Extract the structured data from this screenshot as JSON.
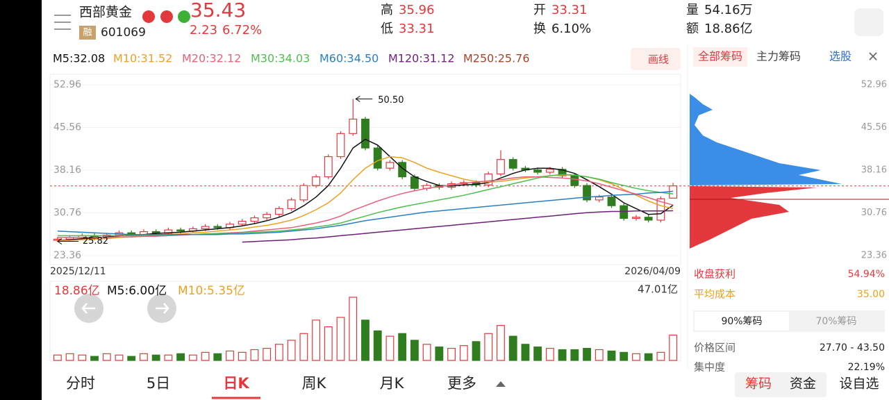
{
  "header": {
    "name": "西部黄金",
    "price": "35.43",
    "change": "2.23",
    "pct": "6.72%",
    "badge": "融",
    "code": "601069",
    "stats": [
      [
        "高",
        "35.96"
      ],
      [
        "低",
        "33.31"
      ],
      [
        "开",
        "33.31"
      ],
      [
        "换",
        "6.10%"
      ],
      [
        "量",
        "54.16万"
      ],
      [
        "额",
        "18.86亿"
      ]
    ],
    "draw": "画线"
  },
  "chart_data": {
    "type": "candlestick",
    "x_start": "2025/12/11",
    "x_end": "2026/04/09",
    "up_color": "#e4393c",
    "down_color": "#2f7d1f",
    "grid": true,
    "ylim": [
      23.36,
      52.96
    ],
    "yticks": [
      52.96,
      45.56,
      38.16,
      30.76,
      {
        "value": 23.36,
        "label": "23.36"
      }
    ],
    "open": [
      26.0,
      26.2,
      26.5,
      26.8,
      26.4,
      26.9,
      27.3,
      27.0,
      27.5,
      27.2,
      27.8,
      27.6,
      28.0,
      28.4,
      28.2,
      28.8,
      29.3,
      29.9,
      30.5,
      31.5,
      33.0,
      35.5,
      37.0,
      40.5,
      44.5,
      47.0,
      42.0,
      38.5,
      39.5,
      37.0,
      35.0,
      35.5,
      35.2,
      35.8,
      36.0,
      35.6,
      37.5,
      40.0,
      38.5,
      38.2,
      37.8,
      38.3,
      37.2,
      35.5,
      33.0,
      33.5,
      32.0,
      29.8,
      30.0,
      29.5,
      33.31
    ],
    "high": [
      26.6,
      26.9,
      27.2,
      27.2,
      27.3,
      27.7,
      27.7,
      27.9,
      27.9,
      28.2,
      28.2,
      28.4,
      28.8,
      28.8,
      29.2,
      29.7,
      30.3,
      30.9,
      31.9,
      33.4,
      35.9,
      37.4,
      40.9,
      44.9,
      50.5,
      47.4,
      42.4,
      39.9,
      39.9,
      37.4,
      35.9,
      35.9,
      36.2,
      36.4,
      36.4,
      37.9,
      41.6,
      40.4,
      38.9,
      38.6,
      38.7,
      38.7,
      37.6,
      35.9,
      33.9,
      33.9,
      32.4,
      30.4,
      30.4,
      33.6,
      35.96
    ],
    "low": [
      25.82,
      25.8,
      26.1,
      26.0,
      26.0,
      26.5,
      26.6,
      26.6,
      26.8,
      26.8,
      27.2,
      27.2,
      27.6,
      27.8,
      27.8,
      28.4,
      28.9,
      29.5,
      30.1,
      31.1,
      32.6,
      35.1,
      36.6,
      40.1,
      44.1,
      41.6,
      38.1,
      38.1,
      36.6,
      34.6,
      34.6,
      34.8,
      34.8,
      35.4,
      35.2,
      35.2,
      37.1,
      38.1,
      37.8,
      37.4,
      37.4,
      36.8,
      35.1,
      32.6,
      32.6,
      31.6,
      29.4,
      29.4,
      29.1,
      29.1,
      33.31
    ],
    "close": [
      26.2,
      26.5,
      26.8,
      26.4,
      26.9,
      27.3,
      27.0,
      27.5,
      27.2,
      27.8,
      27.6,
      28.0,
      28.4,
      28.2,
      28.8,
      29.3,
      29.9,
      30.5,
      31.5,
      33.0,
      35.5,
      37.0,
      40.5,
      44.5,
      47.0,
      42.0,
      38.5,
      39.5,
      37.0,
      35.0,
      35.5,
      35.2,
      35.8,
      36.0,
      35.6,
      37.5,
      40.0,
      38.5,
      38.2,
      37.8,
      38.3,
      37.2,
      35.5,
      33.0,
      33.5,
      32.0,
      29.8,
      30.0,
      29.5,
      33.2,
      35.43
    ],
    "annotations": {
      "high": "50.50",
      "low": "25.82"
    },
    "ma": [
      {
        "name": "M5",
        "label": "M5:32.08",
        "color": "#111111",
        "values": [
          26.0,
          26.1,
          26.3,
          26.4,
          26.6,
          26.8,
          26.9,
          27.0,
          27.2,
          27.3,
          27.4,
          27.6,
          27.8,
          28.0,
          28.2,
          28.5,
          28.9,
          29.4,
          30.0,
          30.8,
          32.0,
          33.5,
          35.5,
          38.5,
          42.0,
          43.5,
          42.5,
          40.5,
          38.5,
          37.0,
          36.2,
          35.5,
          35.4,
          35.6,
          35.7,
          36.0,
          36.8,
          37.6,
          38.2,
          38.5,
          38.5,
          38.2,
          37.6,
          36.5,
          35.3,
          34.0,
          32.5,
          31.5,
          30.5,
          30.6,
          32.08
        ]
      },
      {
        "name": "M10",
        "label": "M10:31.52",
        "color": "#eba122",
        "values": [
          26.0,
          26.0,
          26.1,
          26.2,
          26.3,
          26.5,
          26.6,
          26.7,
          26.9,
          27.0,
          27.1,
          27.3,
          27.4,
          27.6,
          27.8,
          28.0,
          28.3,
          28.6,
          29.0,
          29.5,
          30.3,
          31.3,
          32.5,
          34.2,
          36.5,
          38.5,
          39.8,
          40.5,
          40.3,
          39.5,
          38.5,
          37.8,
          37.2,
          36.6,
          36.2,
          36.1,
          36.2,
          36.5,
          36.8,
          37.0,
          37.2,
          37.3,
          37.3,
          37.0,
          36.5,
          35.8,
          34.8,
          33.8,
          32.8,
          32.0,
          31.52
        ]
      },
      {
        "name": "M20",
        "label": "M20:32.12",
        "color": "#e8607a",
        "values": [
          26.5,
          26.5,
          26.5,
          26.5,
          26.5,
          26.6,
          26.6,
          26.7,
          26.7,
          26.8,
          26.9,
          27.0,
          27.1,
          27.2,
          27.3,
          27.4,
          27.6,
          27.8,
          28.0,
          28.2,
          28.6,
          29.0,
          29.5,
          30.2,
          31.2,
          32.0,
          32.8,
          33.5,
          34.1,
          34.6,
          35.0,
          35.3,
          35.6,
          35.9,
          36.1,
          36.3,
          36.5,
          36.8,
          37.0,
          37.0,
          36.9,
          36.8,
          36.6,
          36.3,
          35.8,
          35.2,
          34.6,
          34.0,
          33.4,
          32.7,
          32.12
        ]
      },
      {
        "name": "M30",
        "label": "M30:34.03",
        "color": "#4cbf4c",
        "values": [
          26.8,
          26.8,
          26.8,
          26.8,
          26.8,
          26.8,
          26.8,
          26.8,
          26.9,
          26.9,
          27.0,
          27.0,
          27.1,
          27.1,
          27.2,
          27.3,
          27.4,
          27.5,
          27.6,
          27.8,
          28.0,
          28.3,
          28.6,
          29.0,
          29.6,
          30.2,
          30.8,
          31.3,
          31.8,
          32.2,
          32.6,
          33.0,
          33.4,
          33.8,
          34.3,
          34.8,
          35.3,
          35.8,
          36.3,
          36.8,
          37.2,
          37.4,
          37.3,
          37.0,
          36.6,
          36.0,
          35.5,
          35.0,
          34.6,
          34.3,
          34.03
        ]
      },
      {
        "name": "M60",
        "label": "M60:34.50",
        "color": "#2a7fc0",
        "values": [
          27.6,
          27.5,
          27.4,
          27.3,
          27.2,
          27.1,
          27.0,
          27.0,
          27.0,
          27.0,
          27.0,
          27.0,
          27.0,
          27.0,
          27.1,
          27.1,
          27.2,
          27.3,
          27.4,
          27.6,
          27.8,
          28.0,
          28.3,
          28.6,
          29.0,
          29.4,
          29.7,
          30.0,
          30.3,
          30.6,
          30.9,
          31.1,
          31.3,
          31.5,
          31.7,
          31.9,
          32.1,
          32.3,
          32.5,
          32.7,
          32.9,
          33.1,
          33.3,
          33.5,
          33.6,
          33.8,
          33.9,
          34.0,
          34.2,
          34.3,
          34.5
        ]
      },
      {
        "name": "M120",
        "label": "M120:31.12",
        "color": "#6e1f78",
        "values": [
          null,
          null,
          null,
          null,
          null,
          null,
          null,
          null,
          null,
          null,
          null,
          null,
          null,
          null,
          null,
          25.7,
          25.8,
          25.9,
          26.0,
          26.1,
          26.3,
          26.4,
          26.6,
          26.8,
          27.0,
          27.2,
          27.4,
          27.6,
          27.8,
          28.0,
          28.2,
          28.4,
          28.6,
          28.8,
          29.0,
          29.2,
          29.4,
          29.6,
          29.8,
          30.0,
          30.2,
          30.4,
          30.6,
          30.8,
          30.9,
          31.0,
          31.0,
          31.1,
          31.1,
          31.1,
          31.12
        ]
      },
      {
        "name": "M250",
        "label": "M250:25.76",
        "color": "#a4432b",
        "values": []
      }
    ],
    "volume": {
      "ylim": [
        0,
        47.01
      ],
      "max_label": "47.01亿",
      "labels": [
        [
          "18.86亿",
          "#e4393c"
        ],
        [
          "M5:6.00亿",
          "#111111"
        ],
        [
          "M10:5.35亿",
          "#eba122"
        ]
      ],
      "values": [
        4,
        5,
        4,
        3,
        5,
        4,
        3,
        5,
        4,
        4,
        5,
        4,
        6,
        5,
        7,
        6,
        8,
        9,
        12,
        15,
        20,
        30,
        25,
        32,
        47.01,
        30,
        22,
        18,
        20,
        15,
        12,
        10,
        9,
        11,
        14,
        20,
        26,
        18,
        12,
        10,
        9,
        8,
        8,
        9,
        8,
        7,
        6,
        5,
        5,
        6,
        18.86
      ]
    }
  },
  "tabs": [
    "分时",
    "5日",
    "日K",
    "周K",
    "月K",
    "更多"
  ],
  "chips": {
    "tabs": [
      "全部筹码",
      "主力筹码",
      "选股"
    ],
    "rows": [
      [
        "收盘获利",
        "54.94%"
      ],
      [
        "平均成本",
        "35.00"
      ]
    ],
    "toggle": [
      "90%筹码",
      "70%筹码"
    ],
    "details": [
      [
        "价格区间",
        "27.70 - 43.50"
      ],
      [
        "集中度",
        "22.19%"
      ]
    ],
    "buttons": [
      "筹码",
      "资金",
      "设自选"
    ]
  }
}
